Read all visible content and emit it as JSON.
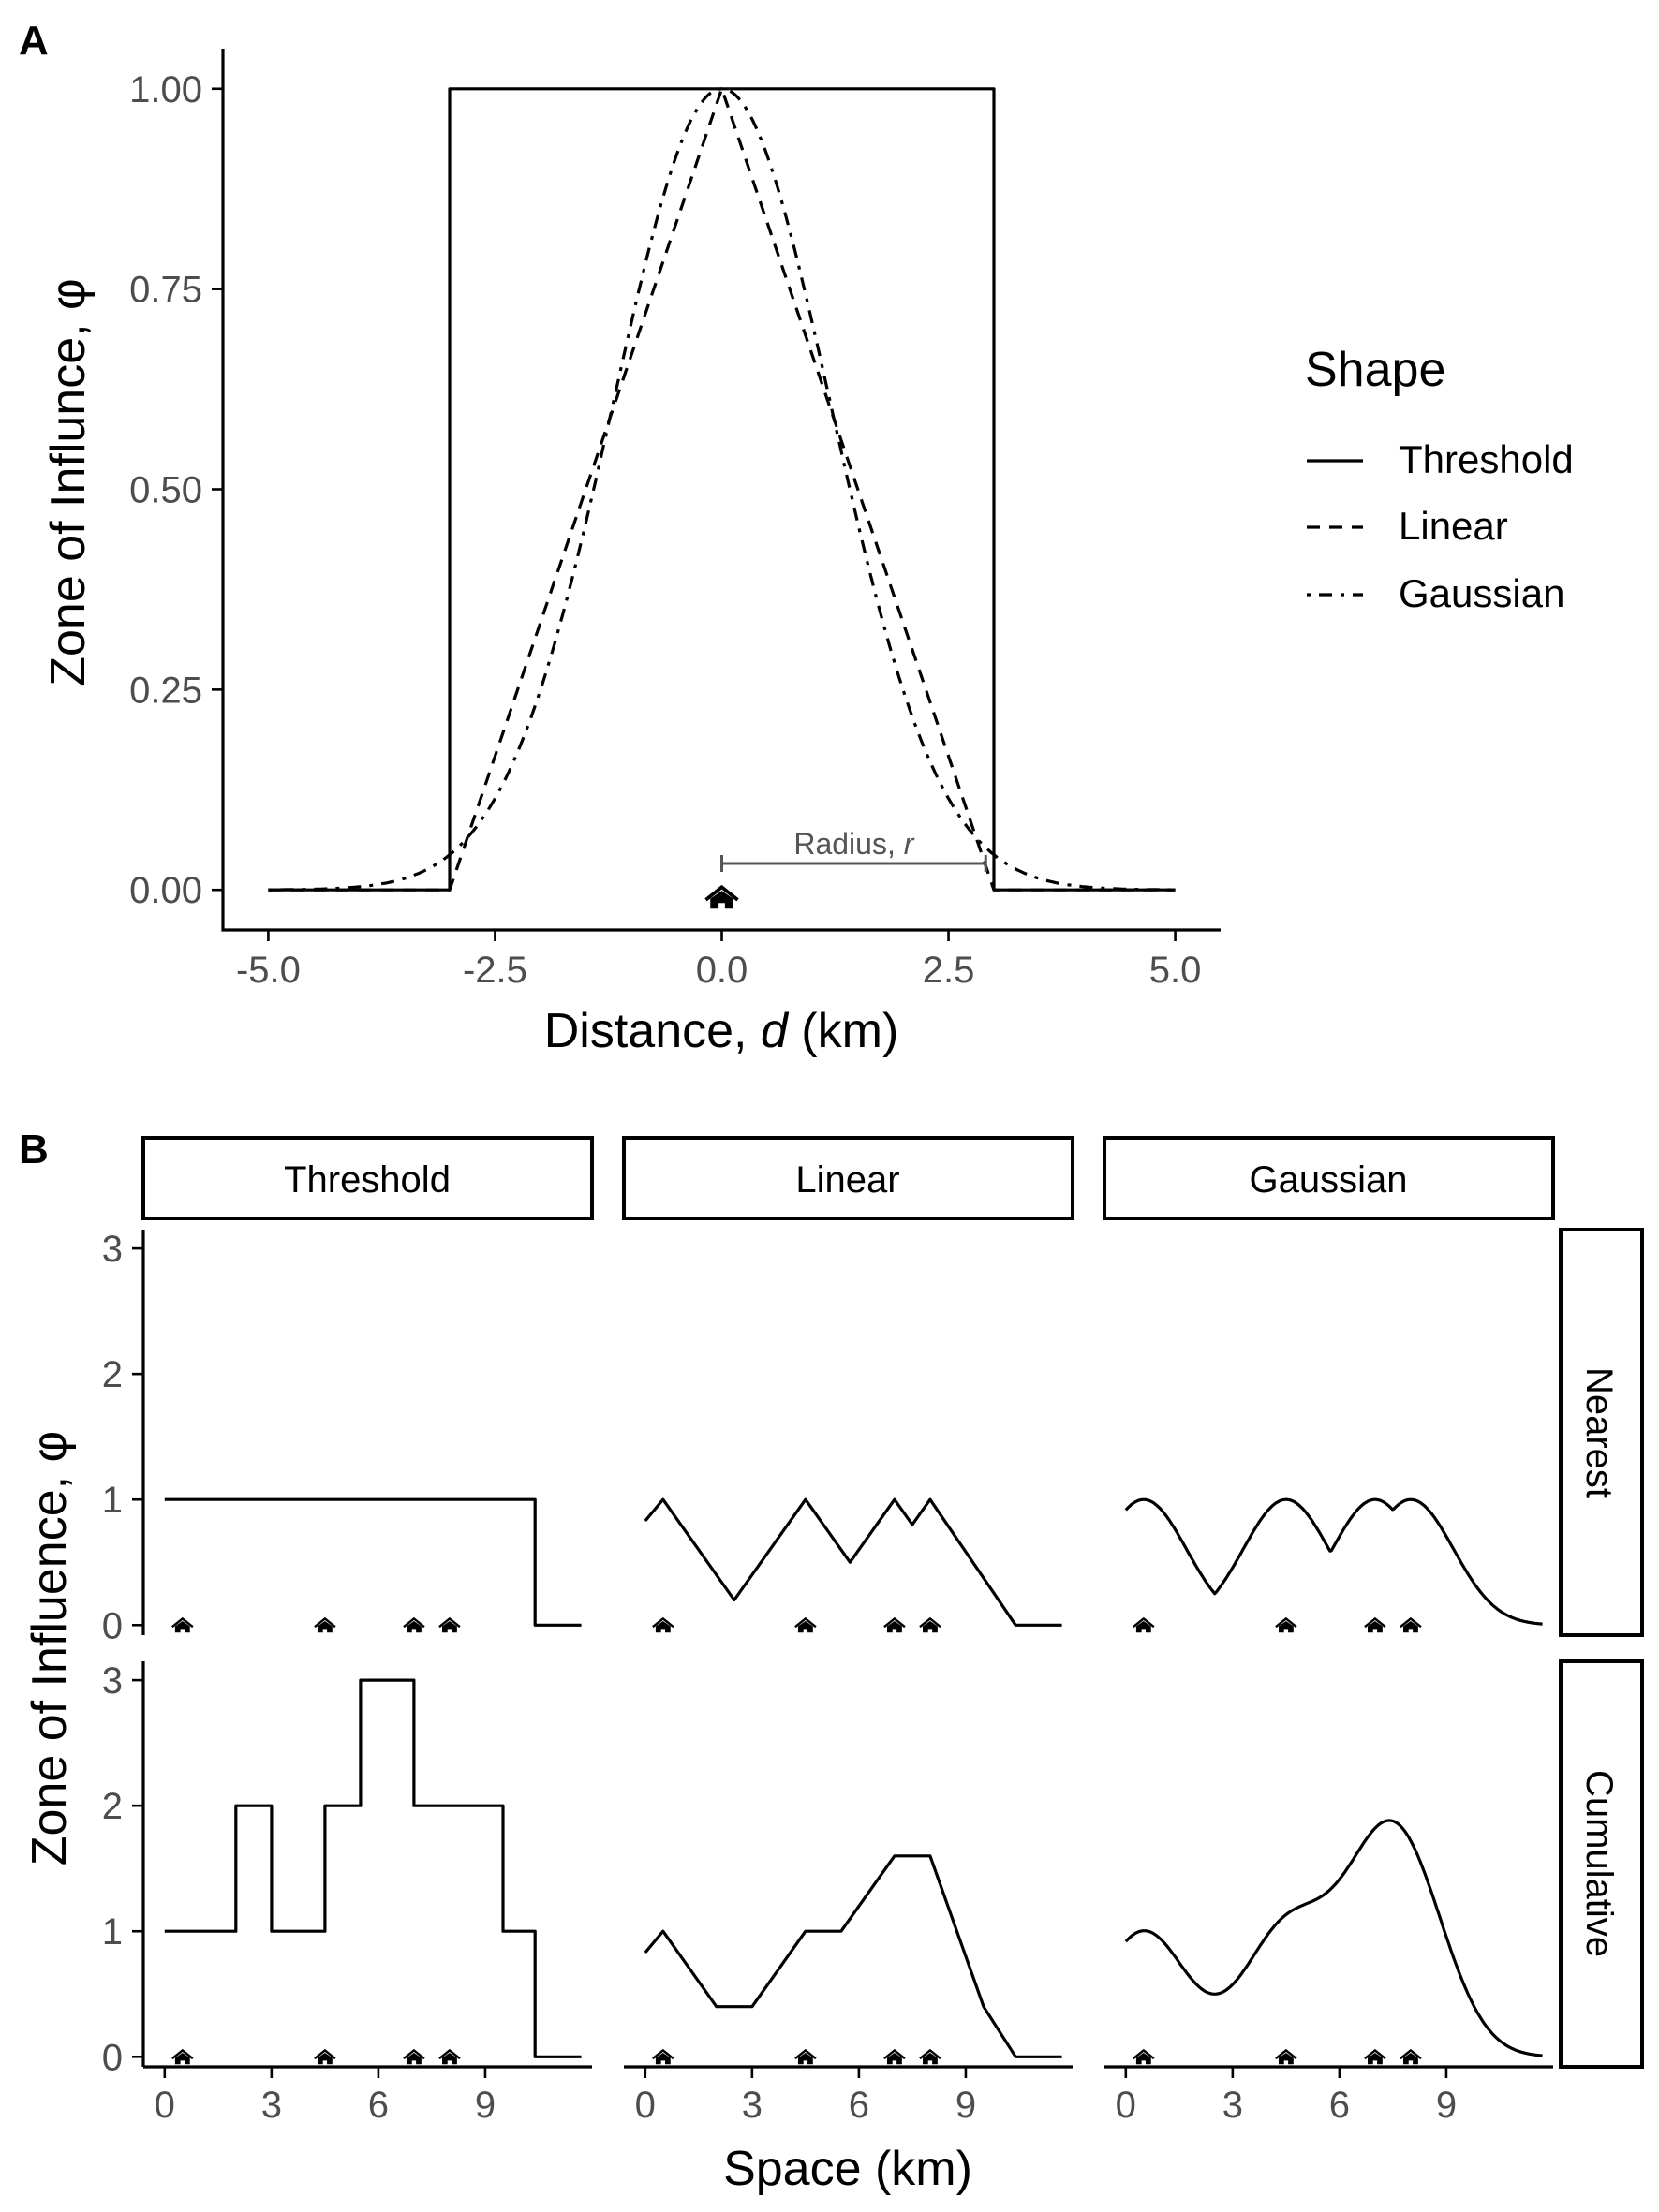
{
  "panelA": {
    "label": "A",
    "xlabel_prefix": "Distance, ",
    "xlabel_var": "d",
    "xlabel_suffix": " (km)",
    "ylabel": "Zone of Influnce, φ",
    "radius_prefix": "Radius, ",
    "radius_var": "r",
    "legend": {
      "title": "Shape",
      "items": [
        "Threshold",
        "Linear",
        "Gaussian"
      ]
    }
  },
  "panelB": {
    "label": "B",
    "xlabel": "Space (km)",
    "ylabel": "Zone of Influence, φ",
    "columns": [
      "Threshold",
      "Linear",
      "Gaussian"
    ],
    "rows": [
      "Nearest",
      "Cumulative"
    ]
  },
  "chart_data": [
    {
      "type": "line",
      "panel": "A",
      "xlabel": "Distance, d (km)",
      "ylabel": "Zone of Influnce, φ",
      "xlim": [
        -5.5,
        5.5
      ],
      "ylim": [
        -0.05,
        1.05
      ],
      "xticks": [
        "-5.0",
        "-2.5",
        "0.0",
        "2.5",
        "5.0"
      ],
      "xtick_values": [
        -5,
        -2.5,
        0,
        2.5,
        5
      ],
      "yticks": [
        "0.00",
        "0.25",
        "0.50",
        "0.75",
        "1.00"
      ],
      "ytick_values": [
        0,
        0.25,
        0.5,
        0.75,
        1
      ],
      "legend_position": "right",
      "radius_km": 3,
      "point_x": 0,
      "series": [
        {
          "name": "Threshold",
          "style": "solid",
          "x": [
            -5,
            -3,
            -3,
            3,
            3,
            5
          ],
          "y": [
            0,
            0,
            1,
            1,
            0,
            0
          ]
        },
        {
          "name": "Linear",
          "style": "dashed",
          "x": [
            -5,
            -3,
            0,
            3,
            5
          ],
          "y": [
            0,
            0,
            1,
            0,
            0
          ]
        },
        {
          "name": "Gaussian",
          "style": "dotdash",
          "function": "exp(-x^2/(2*1.2^2))",
          "x_range": [
            -5,
            5
          ]
        }
      ]
    },
    {
      "type": "line",
      "panel": "B",
      "facet_columns": [
        "Threshold",
        "Linear",
        "Gaussian"
      ],
      "facet_rows": [
        "Nearest",
        "Cumulative"
      ],
      "xlabel": "Space (km)",
      "ylabel": "Zone of Influence, φ",
      "xlim": [
        -0.6,
        12.0
      ],
      "ylim": [
        -0.08,
        3.15
      ],
      "xticks": [
        "0",
        "3",
        "6",
        "9"
      ],
      "xtick_values": [
        0,
        3,
        6,
        9
      ],
      "yticks": [
        "0",
        "1",
        "2",
        "3"
      ],
      "ytick_values": [
        0,
        1,
        2,
        3
      ],
      "point_locations_km": [
        0.5,
        4.5,
        7,
        8
      ],
      "facets": {
        "Threshold": {
          "Nearest": {
            "x": [
              0,
              10.4,
              10.4,
              11.7
            ],
            "y": [
              1,
              1,
              0,
              0
            ]
          },
          "Cumulative": {
            "x": [
              0,
              2,
              2,
              3,
              3,
              4.5,
              4.5,
              5.5,
              5.5,
              7,
              7,
              9.5,
              9.5,
              10.4,
              10.4,
              11.7
            ],
            "y": [
              1,
              1,
              2,
              2,
              1,
              1,
              2,
              2,
              3,
              3,
              2,
              2,
              1,
              1,
              0,
              0
            ]
          }
        },
        "Linear": {
          "Nearest": {
            "x": [
              0,
              0.5,
              2.5,
              4.5,
              5.75,
              7,
              7.5,
              8,
              10.4,
              11.7
            ],
            "y": [
              0.83,
              1,
              0.2,
              1,
              0.5,
              1,
              0.8,
              1,
              0,
              0
            ]
          },
          "Cumulative": {
            "x": [
              0,
              0.5,
              2,
              3,
              4.5,
              5.5,
              7,
              8,
              9.5,
              10.4,
              11.7
            ],
            "y": [
              0.83,
              1,
              0.4,
              0.4,
              1,
              1,
              1.6,
              1.6,
              0.4,
              0,
              0
            ]
          }
        },
        "Gaussian": {
          "Nearest": {
            "function": "max of gaussians centred at points, sigma 1.2",
            "x_range": [
              0,
              11.7
            ]
          },
          "Cumulative": {
            "function": "sum of gaussians centred at points, sigma 1.2",
            "x_range": [
              0,
              11.7
            ]
          }
        }
      }
    }
  ]
}
